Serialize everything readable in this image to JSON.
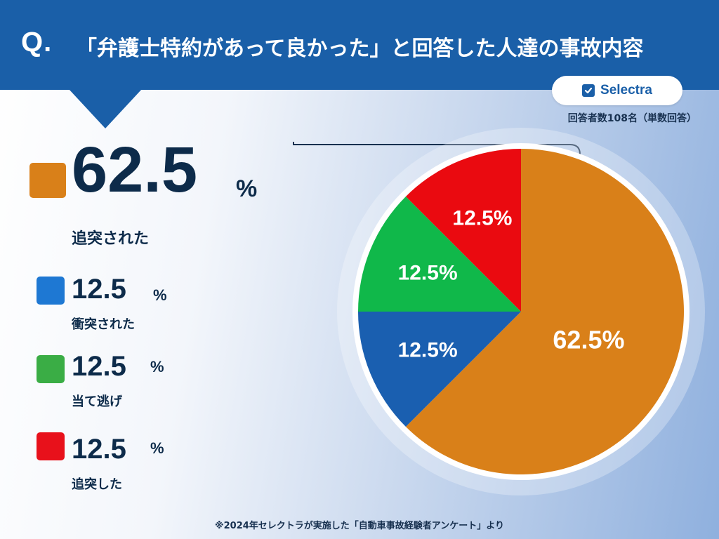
{
  "header": {
    "q_mark": "Q.",
    "title": "「弁護士特約があって良かった」と回答した人達の事故内容"
  },
  "brand": {
    "name": "Selectra",
    "icon": "checkbox-icon"
  },
  "respondents_note": "回答者数108名（単数回答）",
  "legend": {
    "main": {
      "value": "62.5",
      "unit": "%",
      "label": "追突された",
      "color": "#d98019"
    },
    "items": [
      {
        "value": "12.5",
        "unit": "%",
        "label": "衝突された",
        "color": "#1e78d3"
      },
      {
        "value": "12.5",
        "unit": "%",
        "label": "当て逃げ",
        "color": "#3aad45"
      },
      {
        "value": "12.5",
        "unit": "%",
        "label": "追突した",
        "color": "#e8111b"
      }
    ]
  },
  "footnote": "※2024年セレクトラが実施した「自動車事故経験者アンケート」より",
  "chart_data": {
    "type": "pie",
    "title": "「弁護士特約があって良かった」と回答した人達の事故内容",
    "slices": [
      {
        "label": "追突された",
        "value": 62.5,
        "display": "62.5%",
        "color": "#d98019"
      },
      {
        "label": "衝突された",
        "value": 12.5,
        "display": "12.5%",
        "color": "#1a5fb0"
      },
      {
        "label": "当て逃げ",
        "value": 12.5,
        "display": "12.5%",
        "color": "#10b84a"
      },
      {
        "label": "追突した",
        "value": 12.5,
        "display": "12.5%",
        "color": "#ea0a10"
      }
    ],
    "start": "12 o'clock",
    "direction": "clockwise"
  }
}
